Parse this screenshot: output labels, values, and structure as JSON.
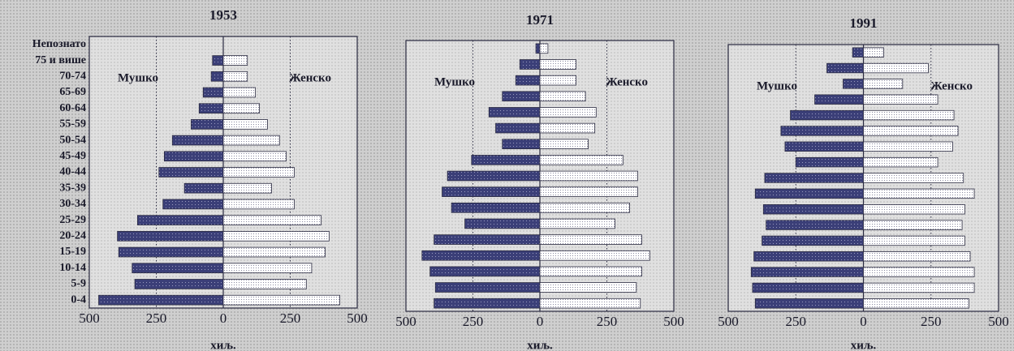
{
  "chart_data": [
    {
      "type": "pyramid",
      "title": "1953",
      "x_label": "хиљ.",
      "categories": [
        "Непознато",
        "75 и више",
        "70-74",
        "65-69",
        "60-64",
        "55-59",
        "50-54",
        "45-49",
        "40-44",
        "35-39",
        "30-34",
        "25-29",
        "20-24",
        "15-19",
        "10-14",
        "5-9",
        "0-4"
      ],
      "series": [
        {
          "name": "Мушко",
          "color": "#3b3f78",
          "values": [
            0,
            -40,
            -45,
            -75,
            -90,
            -120,
            -190,
            -220,
            -240,
            -145,
            -225,
            -320,
            -395,
            -390,
            -340,
            -330,
            -465
          ]
        },
        {
          "name": "Женско",
          "color": "#ffffff",
          "values": [
            0,
            90,
            90,
            120,
            135,
            165,
            210,
            235,
            265,
            180,
            265,
            365,
            395,
            380,
            330,
            310,
            435
          ]
        }
      ],
      "xlim": [
        -500,
        500
      ],
      "xticks": [
        {
          "value": -500,
          "label": "500"
        },
        {
          "value": -250,
          "label": "250"
        },
        0,
        250,
        500
      ],
      "grid": true
    },
    {
      "type": "pyramid",
      "title": "1971",
      "x_label": "хиљ.",
      "series": [
        {
          "name": "Мушко",
          "color": "#3b3f78",
          "values": [
            -15,
            -75,
            -90,
            -140,
            -190,
            -165,
            -140,
            -255,
            -345,
            -365,
            -330,
            -280,
            -395,
            -440,
            -410,
            -390,
            -395
          ]
        },
        {
          "name": "Женско",
          "color": "#ffffff",
          "values": [
            30,
            135,
            135,
            170,
            210,
            205,
            180,
            310,
            365,
            365,
            335,
            280,
            380,
            410,
            380,
            360,
            375
          ]
        }
      ],
      "xlim": [
        -500,
        500
      ],
      "xticks": [
        {
          "value": -500,
          "label": "500"
        },
        {
          "value": -250,
          "label": "250"
        },
        0,
        250,
        500
      ],
      "grid": true
    },
    {
      "type": "pyramid",
      "title": "1991",
      "x_label": "хиљ.",
      "series": [
        {
          "name": "Мушко",
          "color": "#3b3f78",
          "values": [
            -40,
            -135,
            -75,
            -180,
            -270,
            -305,
            -290,
            -250,
            -365,
            -400,
            -370,
            -360,
            -375,
            -405,
            -415,
            -410,
            -400
          ]
        },
        {
          "name": "Женско",
          "color": "#ffffff",
          "values": [
            75,
            240,
            145,
            275,
            335,
            350,
            330,
            275,
            370,
            410,
            375,
            365,
            375,
            395,
            410,
            410,
            390
          ]
        }
      ],
      "xlim": [
        -500,
        500
      ],
      "xticks": [
        {
          "value": -500,
          "label": "500"
        },
        {
          "value": -250,
          "label": "250"
        },
        0,
        250,
        500
      ],
      "grid": true
    }
  ]
}
